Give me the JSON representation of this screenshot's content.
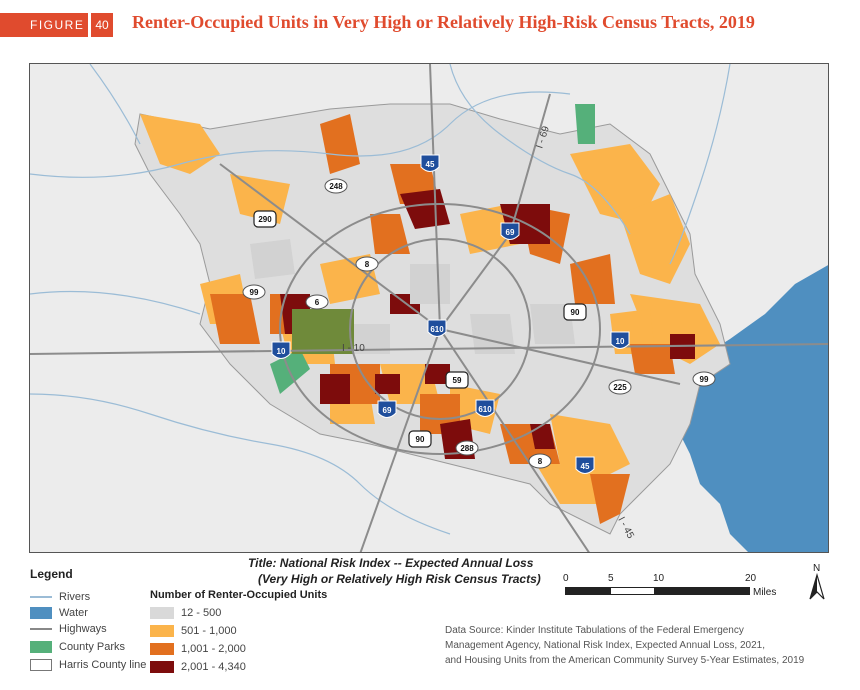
{
  "figure": {
    "label": "FIGURE",
    "number": "40",
    "title": "Renter-Occupied Units in Very High or Relatively High-Risk Census Tracts, 2019"
  },
  "map": {
    "highways": [
      {
        "name": "45",
        "kind": "interstate"
      },
      {
        "name": "45",
        "kind": "interstate"
      },
      {
        "name": "69",
        "kind": "interstate"
      },
      {
        "name": "69",
        "kind": "interstate"
      },
      {
        "name": "10",
        "kind": "interstate"
      },
      {
        "name": "10",
        "kind": "interstate"
      },
      {
        "name": "610",
        "kind": "interstate"
      },
      {
        "name": "610",
        "kind": "interstate"
      },
      {
        "name": "290",
        "kind": "us"
      },
      {
        "name": "90",
        "kind": "us"
      },
      {
        "name": "90",
        "kind": "us"
      },
      {
        "name": "59",
        "kind": "us"
      },
      {
        "name": "248",
        "kind": "state"
      },
      {
        "name": "8",
        "kind": "state"
      },
      {
        "name": "8",
        "kind": "state"
      },
      {
        "name": "99",
        "kind": "state"
      },
      {
        "name": "99",
        "kind": "state"
      },
      {
        "name": "6",
        "kind": "state"
      },
      {
        "name": "225",
        "kind": "state"
      },
      {
        "name": "288",
        "kind": "state"
      }
    ],
    "road_labels": [
      "I - 69",
      "I - 10",
      "I - 45"
    ]
  },
  "legend": {
    "title": "Legend",
    "items": [
      {
        "label": "Rivers",
        "icon": "river-line"
      },
      {
        "label": "Water",
        "icon": "water-swatch"
      },
      {
        "label": "Highways",
        "icon": "highway-line"
      },
      {
        "label": "County Parks",
        "icon": "park-swatch"
      },
      {
        "label": "Harris County line",
        "icon": "county-outline"
      }
    ],
    "units": {
      "title": "Number of Renter-Occupied Units",
      "classes": [
        {
          "label": "12 - 500",
          "color": "#d9d9d9"
        },
        {
          "label": "501 - 1,000",
          "color": "#fbb44b"
        },
        {
          "label": "1,001 - 2,000",
          "color": "#e2701f"
        },
        {
          "label": "2,001 - 4,340",
          "color": "#7d0c0c"
        }
      ]
    }
  },
  "nri": {
    "title": "Title: National Risk Index -- Expected Annual Loss",
    "subtitle": "(Very High or Relatively High Risk Census Tracts)"
  },
  "scalebar": {
    "ticks": [
      "0",
      "5",
      "10",
      "20"
    ],
    "unit": "Miles"
  },
  "north": "N",
  "source": {
    "line1": "Data Source: Kinder Institute Tabulations of the Federal Emergency",
    "line2": "Management Agency, National Risk Index, Expected Annual Loss, 2021,",
    "line3": "and Housing Units from the American Community Survey 5-Year Estimates, 2019"
  },
  "colors": {
    "accent": "#e04b2e",
    "water": "#4f8fc0",
    "river": "#9bbcd6",
    "park": "#55b07a",
    "land": "#ececec"
  }
}
